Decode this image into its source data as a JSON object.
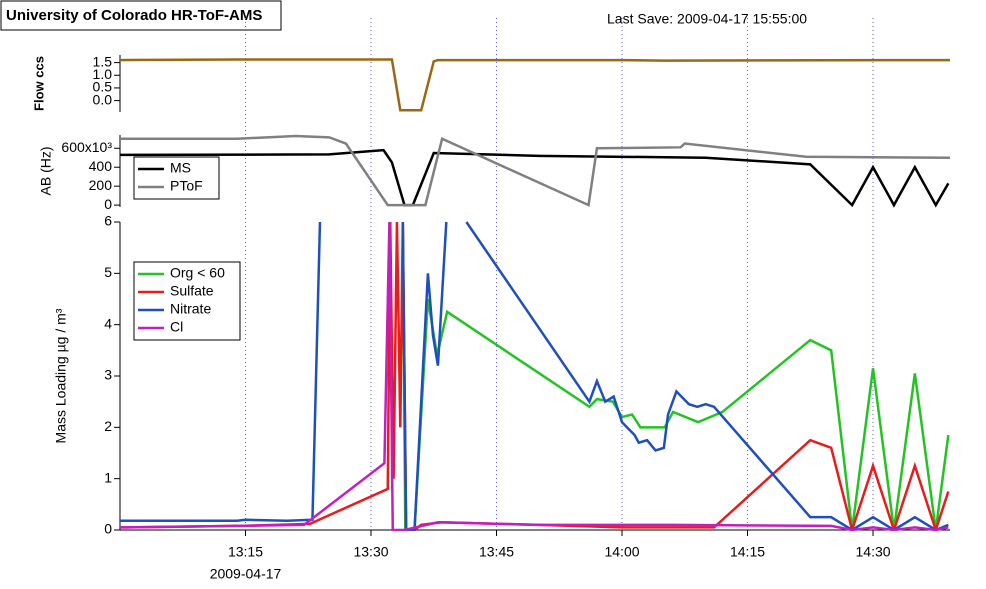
{
  "header": {
    "title": "University of Colorado HR-ToF-AMS",
    "last_save": "Last Save: 2009-04-17 15:55:00"
  },
  "chart_data": [
    {
      "type": "line",
      "ylabel": "Flow ccs",
      "ylim": [
        -0.45,
        1.8
      ],
      "yticks": [
        {
          "value": 0,
          "label": "0.0"
        },
        {
          "value": 0.5,
          "label": "0.5"
        },
        {
          "value": 1,
          "label": "1.0"
        },
        {
          "value": 1.5,
          "label": "1.5"
        }
      ],
      "series": [
        {
          "name": "Flow",
          "color": "#9a6814",
          "x": [
            0,
            14,
            28,
            32.5,
            33.5,
            36,
            37.5,
            38,
            60,
            65,
            99.2
          ],
          "values": [
            1.6,
            1.62,
            1.62,
            1.62,
            -0.38,
            -0.38,
            1.55,
            1.6,
            1.6,
            1.58,
            1.6
          ]
        }
      ]
    },
    {
      "type": "line",
      "ylabel": "AB (Hz)",
      "ylim": [
        -20,
        740
      ],
      "legend": "upper left",
      "yticks": [
        0,
        200,
        400,
        {
          "value": 600,
          "label": "600x10³"
        }
      ],
      "series": [
        {
          "name": "MS",
          "color": "#000000",
          "x": [
            0,
            25,
            31.5,
            32.5,
            34,
            35,
            37.5,
            50,
            70,
            82.5,
            87.5,
            90,
            92.5,
            95,
            97.5,
            99
          ],
          "values": [
            530,
            535,
            580,
            450,
            0,
            0,
            550,
            520,
            500,
            430,
            0,
            400,
            0,
            400,
            0,
            230
          ]
        },
        {
          "name": "PToF",
          "color": "#808080",
          "x": [
            0,
            14,
            21,
            25,
            27,
            32,
            36.5,
            38.5,
            56,
            57,
            67,
            67.5,
            82,
            99.2
          ],
          "values": [
            700,
            700,
            730,
            715,
            650,
            0,
            0,
            700,
            0,
            600,
            610,
            650,
            510,
            500
          ]
        }
      ]
    },
    {
      "type": "line",
      "ylabel": "Mass Loading µg / m³",
      "ylim": [
        0,
        6
      ],
      "yticks": [
        0,
        1,
        2,
        3,
        4,
        5,
        6
      ],
      "legend": "upper left",
      "xlim": [
        0,
        99.2
      ],
      "xticks": [
        {
          "value": 15,
          "label": "13:15"
        },
        {
          "value": 30,
          "label": "13:30"
        },
        {
          "value": 45,
          "label": "13:45"
        },
        {
          "value": 60,
          "label": "14:00"
        },
        {
          "value": 75,
          "label": "14:15"
        },
        {
          "value": 90,
          "label": "14:30"
        }
      ],
      "date_label": "2009-04-17",
      "series": [
        {
          "name": "Org < 60",
          "color": "#22c322",
          "x": [
            33.8,
            34.1,
            35.2,
            36.8,
            37.9,
            39.1,
            56.1,
            57,
            58.9,
            60,
            61.2,
            62.2,
            65.1,
            66.1,
            69.1,
            72,
            82.5,
            85,
            87.5,
            90,
            92.5,
            95,
            97.5,
            99
          ],
          "values": [
            6,
            0,
            0,
            4.5,
            3.4,
            4.25,
            2.4,
            2.55,
            2.5,
            2.2,
            2.25,
            2,
            2,
            2.3,
            2.1,
            2.3,
            3.7,
            3.5,
            0,
            3.15,
            0,
            3.05,
            0,
            1.85
          ]
        },
        {
          "name": "Sulfate",
          "color": "#e81c1c",
          "x": [
            0,
            14.3,
            22.7,
            32,
            32.3,
            32.7,
            33.1,
            33.5,
            33.8,
            34.2,
            35.2,
            36,
            38.5,
            50,
            60,
            71,
            82.5,
            85,
            87.5,
            90,
            92.5,
            95,
            97.5,
            99
          ],
          "values": [
            0.05,
            0.08,
            0.12,
            0.8,
            6,
            1,
            6,
            2,
            6,
            0,
            0,
            0.1,
            0.15,
            0.1,
            0.05,
            0.05,
            1.75,
            1.6,
            0,
            1.25,
            0,
            1.25,
            0,
            0.75
          ]
        },
        {
          "name": "Nitrate",
          "color": "#1f4fbf",
          "x": [
            0,
            14,
            15,
            20,
            23,
            23.9,
            30,
            33.8,
            34.2,
            35.2,
            36.8,
            37.4,
            38,
            39,
            40,
            41.4,
            56.1,
            57,
            58,
            59,
            60,
            61.5,
            62,
            63,
            64,
            65,
            65.5,
            66.5,
            68,
            69,
            70,
            71,
            82.5,
            85,
            87.5,
            90,
            92.5,
            95,
            97.5,
            99
          ],
          "values": [
            0.18,
            0.18,
            0.2,
            0.18,
            0.2,
            6,
            null,
            6,
            0,
            0,
            5,
            3.8,
            3.2,
            6,
            null,
            6,
            2.5,
            2.9,
            2.5,
            2.6,
            2.1,
            1.85,
            1.7,
            1.75,
            1.55,
            1.6,
            2.25,
            2.7,
            2.45,
            2.4,
            2.45,
            2.4,
            0.25,
            0.25,
            0,
            0.25,
            0,
            0.25,
            0,
            0.1
          ]
        },
        {
          "name": "Cl",
          "color": "#c020c0",
          "x": [
            0,
            14,
            22,
            31.6,
            32.2,
            32.6,
            34,
            38,
            50,
            66,
            85,
            87.5,
            90,
            92.5,
            95,
            97.5,
            99
          ],
          "values": [
            0.05,
            0.08,
            0.1,
            1.3,
            6,
            0,
            0,
            0.15,
            0.1,
            0.1,
            0.08,
            0,
            0.05,
            0,
            0.05,
            0,
            0.05
          ]
        }
      ]
    }
  ]
}
